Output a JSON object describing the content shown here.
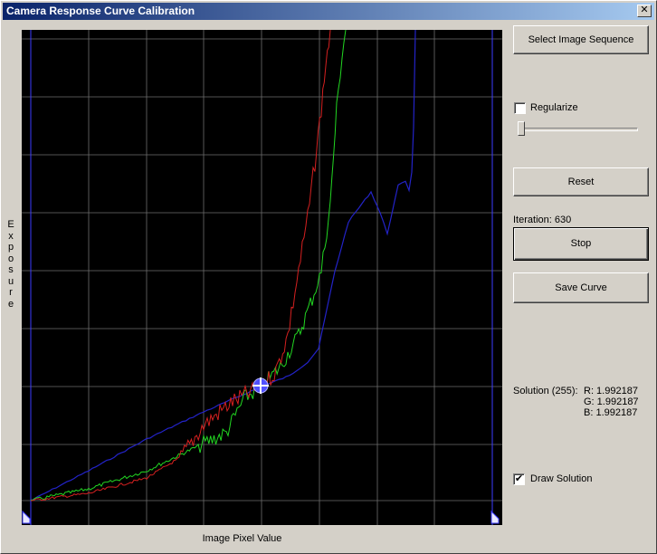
{
  "window": {
    "title": "Camera Response Curve Calibration",
    "close_glyph": "✕"
  },
  "plot": {
    "y_axis_label": "Exposure",
    "x_axis_label": "Image Pixel Value",
    "colors": {
      "background": "#000000",
      "grid": "#6e6e6e",
      "border_line": "#3c3cff",
      "red": "#d42020",
      "green": "#22d622",
      "blue": "#2323c8"
    }
  },
  "buttons": {
    "select_sequence": "Select Image Sequence",
    "reset": "Reset",
    "stop": "Stop",
    "save_curve": "Save Curve"
  },
  "regularize": {
    "label": "Regularize",
    "checked": false,
    "slider_level": 0.0
  },
  "iteration": {
    "label": "Iteration: 630"
  },
  "solution": {
    "label": "Solution (255):",
    "r": "R: 1.992187",
    "g": "G: 1.992187",
    "b": "B: 1.992187"
  },
  "draw_solution": {
    "label": "Draw Solution",
    "checked": true,
    "check_glyph": "✔"
  }
}
